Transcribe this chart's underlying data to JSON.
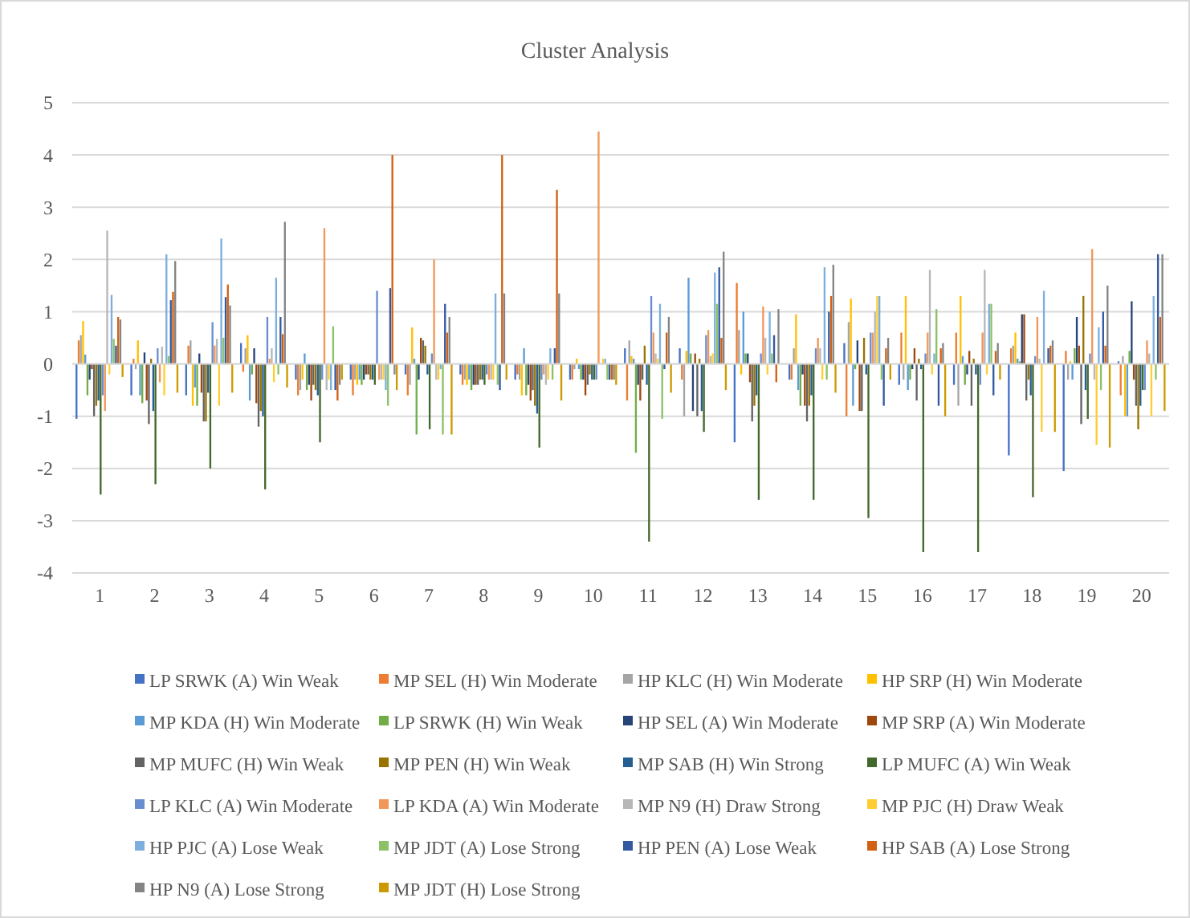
{
  "chart_data": {
    "type": "bar",
    "title": "Cluster Analysis",
    "categories": [
      "1",
      "2",
      "3",
      "4",
      "5",
      "6",
      "7",
      "8",
      "9",
      "10",
      "11",
      "12",
      "13",
      "14",
      "15",
      "16",
      "17",
      "18",
      "19",
      "20"
    ],
    "ylim": [
      -4,
      5
    ],
    "yticks": [
      -4,
      -3,
      -2,
      -1,
      0,
      1,
      2,
      3,
      4,
      5
    ],
    "grid": "y",
    "legend": "bottom",
    "series": [
      {
        "name": "LP SRWK (A) Win Weak",
        "color": "#4472c4",
        "values": [
          -1.05,
          -0.6,
          -0.6,
          0.4,
          -0.3,
          -0.3,
          -0.2,
          -0.2,
          -0.3,
          -0.3,
          0.3,
          0.3,
          -1.5,
          -0.3,
          0.4,
          -0.4,
          -0.4,
          -1.75,
          -2.05,
          0.05
        ]
      },
      {
        "name": "MP SEL (H) Win Moderate",
        "color": "#ed7d31",
        "values": [
          0.45,
          0.1,
          0.35,
          -0.15,
          -0.6,
          -0.6,
          -0.6,
          -0.4,
          -0.2,
          -0.3,
          -0.7,
          -0.3,
          1.55,
          -0.3,
          -1.0,
          0.6,
          0.6,
          0.3,
          0.25,
          -0.6
        ]
      },
      {
        "name": "HP KLC (H) Win Moderate",
        "color": "#a5a5a5",
        "values": [
          0.55,
          -0.1,
          0.45,
          0.3,
          -0.5,
          -0.3,
          -0.4,
          -0.3,
          -0.3,
          -0.1,
          0.45,
          -1.0,
          0.65,
          0.3,
          0.8,
          -0.3,
          -0.8,
          0.35,
          -0.3,
          0.15
        ]
      },
      {
        "name": "HP SRP (H) Win Moderate",
        "color": "#ffc000",
        "values": [
          0.82,
          0.45,
          -0.8,
          0.55,
          -0.3,
          -0.4,
          0.7,
          -0.4,
          -0.6,
          0.1,
          0.15,
          0.25,
          -0.2,
          0.95,
          1.25,
          1.3,
          1.3,
          0.6,
          0.05,
          -1.0
        ]
      },
      {
        "name": "MP KDA (H) Win Moderate",
        "color": "#5b9bd5",
        "values": [
          0.18,
          -0.6,
          -0.45,
          -0.7,
          0.2,
          -0.3,
          0.1,
          -0.3,
          0.3,
          -0.1,
          0.1,
          1.65,
          1.0,
          -0.5,
          -0.8,
          -0.5,
          0.15,
          0.1,
          -0.3,
          -1.0
        ]
      },
      {
        "name": "LP SRWK (H) Win Weak",
        "color": "#70ad47",
        "values": [
          -0.6,
          -0.75,
          -0.8,
          -0.2,
          -0.5,
          -0.4,
          -1.35,
          -0.5,
          -0.6,
          -0.3,
          -1.7,
          0.2,
          0.2,
          -0.8,
          -0.1,
          -0.3,
          -0.4,
          0.05,
          0.3,
          0.25
        ]
      },
      {
        "name": "HP SEL (A) Win Moderate",
        "color": "#264478",
        "values": [
          -0.3,
          0.22,
          0.2,
          0.3,
          -0.4,
          -0.3,
          -0.3,
          -0.4,
          -0.4,
          -0.3,
          -0.4,
          -0.9,
          0.2,
          -0.2,
          0.45,
          -0.1,
          -0.2,
          0.95,
          0.9,
          1.2
        ]
      },
      {
        "name": "MP SRP (A) Win Moderate",
        "color": "#9e480e",
        "values": [
          -0.1,
          -0.7,
          -0.55,
          -0.75,
          -0.7,
          -0.2,
          0.5,
          -0.4,
          -0.7,
          -0.6,
          -0.7,
          0.2,
          -0.35,
          -0.8,
          -0.9,
          0.3,
          0.25,
          0.95,
          0.35,
          -0.3
        ]
      },
      {
        "name": "MP MUFC (H) Win Weak",
        "color": "#636363",
        "values": [
          -1.0,
          -1.15,
          -1.1,
          -1.2,
          -0.4,
          -0.2,
          0.45,
          -0.4,
          -0.5,
          -0.4,
          -0.3,
          -1.0,
          -1.1,
          -1.1,
          -0.9,
          -0.7,
          -0.8,
          -0.7,
          -1.15,
          -0.8
        ]
      },
      {
        "name": "MP PEN (H) Win Weak",
        "color": "#997300",
        "values": [
          -0.8,
          0.1,
          -1.1,
          -0.9,
          -0.5,
          -0.3,
          0.35,
          -0.3,
          -0.8,
          -0.2,
          0.35,
          0.1,
          -0.8,
          -0.8,
          0.5,
          0.1,
          0.1,
          -0.3,
          1.3,
          -1.25
        ]
      },
      {
        "name": "MP SAB (H) Win Strong",
        "color": "#255e91",
        "values": [
          -0.7,
          -0.9,
          -0.55,
          -1.0,
          -0.6,
          -0.3,
          -0.2,
          -0.3,
          -0.95,
          -0.3,
          -0.4,
          -0.9,
          -0.6,
          -0.6,
          -0.2,
          -0.1,
          -0.2,
          -0.6,
          -0.5,
          -0.8
        ]
      },
      {
        "name": "LP MUFC (A) Win Weak",
        "color": "#43682b",
        "values": [
          -2.5,
          -2.3,
          -2.0,
          -2.4,
          -1.5,
          -0.4,
          -1.25,
          -0.4,
          -1.6,
          -0.3,
          -3.4,
          -1.3,
          -2.6,
          -2.6,
          -2.95,
          -3.6,
          -3.6,
          -2.55,
          -1.05,
          -0.5
        ]
      },
      {
        "name": "LP KLC (A) Win Moderate",
        "color": "#698ed0",
        "values": [
          -0.6,
          0.3,
          0.8,
          0.9,
          -0.3,
          1.4,
          0.2,
          -0.2,
          -0.3,
          -0.3,
          1.3,
          0.55,
          0.2,
          0.3,
          0.6,
          0.2,
          -0.4,
          0.15,
          0.2,
          -0.5
        ]
      },
      {
        "name": "LP KDA (A) Win Moderate",
        "color": "#f1975a",
        "values": [
          -0.9,
          -0.35,
          0.35,
          0.1,
          2.6,
          -0.3,
          2.0,
          -0.3,
          -0.2,
          4.45,
          0.6,
          0.65,
          1.1,
          0.5,
          0.6,
          0.6,
          0.6,
          0.9,
          2.2,
          0.45
        ]
      },
      {
        "name": "MP N9 (H) Draw Strong",
        "color": "#b7b7b7",
        "values": [
          2.55,
          0.33,
          0.48,
          0.3,
          -0.5,
          -0.3,
          -0.3,
          -0.3,
          -0.4,
          null,
          0.2,
          0.15,
          0.5,
          0.3,
          1.0,
          1.8,
          1.8,
          0.1,
          -0.3,
          0.2
        ]
      },
      {
        "name": "MP PJC (H) Draw Weak",
        "color": "#ffcd33",
        "values": [
          -0.2,
          -0.6,
          -0.8,
          -0.35,
          -0.3,
          -0.3,
          -0.3,
          -0.3,
          -0.3,
          0.1,
          0.1,
          0.2,
          -0.2,
          -0.3,
          1.3,
          -0.2,
          -0.2,
          -1.3,
          -1.55,
          -1.0
        ]
      },
      {
        "name": "HP PJC (A) Lose Weak",
        "color": "#7cafdd",
        "values": [
          1.32,
          2.1,
          2.4,
          1.65,
          -0.5,
          -0.5,
          -0.1,
          1.35,
          0.3,
          0.1,
          1.15,
          1.75,
          1.0,
          1.85,
          1.3,
          0.2,
          1.15,
          1.4,
          0.7,
          1.3
        ]
      },
      {
        "name": "MP JDT (A) Lose Strong",
        "color": "#8cc168",
        "values": [
          0.48,
          0.15,
          0.5,
          -0.2,
          0.72,
          -0.8,
          -1.35,
          -0.4,
          -0.3,
          -0.3,
          -1.05,
          1.15,
          0.2,
          -0.3,
          -0.3,
          1.05,
          1.15,
          null,
          -0.5,
          -0.3
        ]
      },
      {
        "name": "HP PEN (A) Lose Weak",
        "color": "#335aa1",
        "values": [
          0.35,
          1.22,
          1.28,
          0.9,
          -0.5,
          1.45,
          1.15,
          -0.5,
          0.3,
          -0.3,
          -0.1,
          1.85,
          0.55,
          1.0,
          -0.8,
          -0.8,
          -0.6,
          0.3,
          1.0,
          2.1
        ]
      },
      {
        "name": "HP SAB (A) Lose Strong",
        "color": "#d26012",
        "values": [
          0.9,
          1.38,
          1.52,
          0.57,
          -0.7,
          4.0,
          0.6,
          4.0,
          3.33,
          -0.3,
          0.6,
          0.5,
          -0.35,
          1.3,
          0.3,
          0.3,
          0.25,
          0.35,
          0.35,
          0.9
        ]
      },
      {
        "name": "HP N9 (A) Lose Strong",
        "color": "#848484",
        "values": [
          0.85,
          1.97,
          1.12,
          2.72,
          -0.4,
          -0.2,
          0.9,
          1.35,
          1.35,
          -0.3,
          0.9,
          2.15,
          1.05,
          1.9,
          0.5,
          0.4,
          0.4,
          0.45,
          1.5,
          2.1
        ]
      },
      {
        "name": "MP JDT (H) Lose Strong",
        "color": "#cc9a00",
        "values": [
          -0.25,
          -0.55,
          -0.55,
          -0.45,
          -0.3,
          -0.5,
          -1.35,
          -0.3,
          -0.7,
          -0.4,
          -0.55,
          -0.5,
          null,
          -0.55,
          -0.3,
          -1.0,
          -0.3,
          -1.3,
          -1.6,
          -0.9
        ]
      }
    ]
  }
}
